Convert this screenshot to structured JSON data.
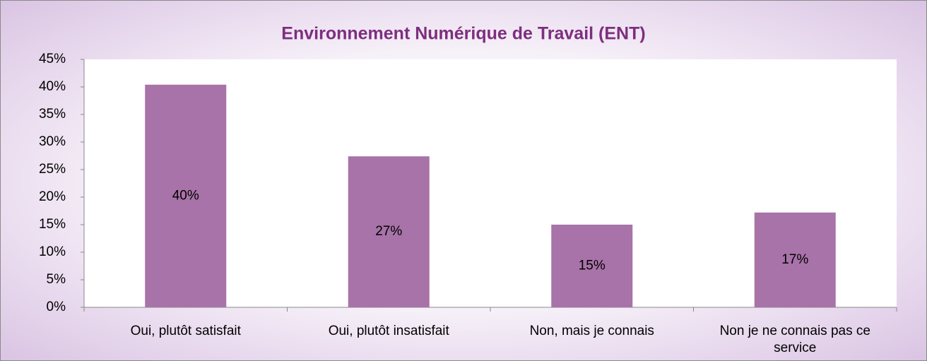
{
  "chart_data": {
    "type": "bar",
    "title": "Environnement Numérique de Travail (ENT)",
    "categories": [
      "Oui, plutôt satisfait",
      "Oui, plutôt insatisfait",
      "Non, mais je connais",
      "Non je ne connais pas ce service"
    ],
    "values": [
      40.4,
      27.4,
      15,
      17.2
    ],
    "value_labels": [
      "40%",
      "27%",
      "15%",
      "17%"
    ],
    "color": "#a873a8",
    "ylim": [
      0,
      45
    ],
    "yticks": [
      {
        "value": 0,
        "label": "0%"
      },
      {
        "value": 5,
        "label": "5%"
      },
      {
        "value": 10,
        "label": "10%"
      },
      {
        "value": 15,
        "label": "15%"
      },
      {
        "value": 20,
        "label": "20%"
      },
      {
        "value": 25,
        "label": "25%"
      },
      {
        "value": 30,
        "label": "30%"
      },
      {
        "value": 35,
        "label": "35%"
      },
      {
        "value": 40,
        "label": "40%"
      },
      {
        "value": 45,
        "label": "45%"
      }
    ],
    "grid": false
  }
}
